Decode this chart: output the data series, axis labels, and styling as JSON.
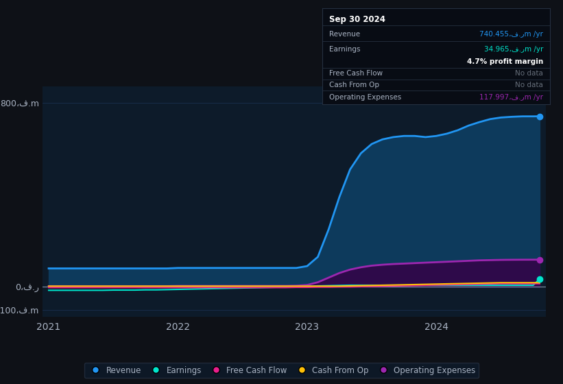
{
  "background_color": "#0e1117",
  "plot_bg_color": "#0d1b2a",
  "grid_color": "#1a3050",
  "text_color": "#aab4c4",
  "title_color": "#ffffff",
  "ylabel_800": "800،ف.m",
  "ylabel_0": "0،ف.ر",
  "ylabel_neg100": "-100،ف.m",
  "xtick_labels": [
    "2021",
    "2022",
    "2023",
    "2024"
  ],
  "xtick_positions": [
    0.0,
    1.0,
    2.0,
    3.0
  ],
  "x_values": [
    0.0,
    0.083,
    0.167,
    0.25,
    0.333,
    0.417,
    0.5,
    0.583,
    0.667,
    0.75,
    0.833,
    0.917,
    1.0,
    1.083,
    1.167,
    1.25,
    1.333,
    1.417,
    1.5,
    1.583,
    1.667,
    1.75,
    1.833,
    1.917,
    2.0,
    2.083,
    2.167,
    2.25,
    2.333,
    2.417,
    2.5,
    2.583,
    2.667,
    2.75,
    2.833,
    2.917,
    3.0,
    3.083,
    3.167,
    3.25,
    3.333,
    3.417,
    3.5,
    3.583,
    3.667,
    3.75,
    3.8
  ],
  "revenue": [
    80,
    80,
    80,
    80,
    80,
    80,
    80,
    80,
    80,
    80,
    80,
    80,
    82,
    82,
    82,
    82,
    82,
    82,
    82,
    82,
    82,
    82,
    82,
    82,
    90,
    130,
    250,
    390,
    510,
    580,
    620,
    640,
    650,
    655,
    655,
    650,
    655,
    665,
    680,
    700,
    715,
    728,
    735,
    738,
    740,
    740,
    740.455
  ],
  "earnings": [
    -15,
    -15,
    -15,
    -15,
    -15,
    -15,
    -14,
    -14,
    -14,
    -13,
    -13,
    -12,
    -11,
    -10,
    -9,
    -8,
    -7,
    -6,
    -5,
    -4,
    -3,
    -2,
    -1,
    0,
    2,
    4,
    5,
    6,
    7,
    7,
    7,
    7,
    7,
    7,
    7,
    7,
    7,
    7,
    7,
    7,
    7,
    7,
    7,
    7,
    7,
    7,
    34.965
  ],
  "free_cash_flow": [
    -3,
    -3,
    -3,
    -3,
    -3,
    -3,
    -3,
    -3,
    -3,
    -3,
    -3,
    -3,
    -3,
    -3,
    -3,
    -3,
    -3,
    -3,
    -3,
    -3,
    -3,
    -3,
    -3,
    -2,
    -2,
    -1,
    -1,
    0,
    0,
    1,
    2,
    3,
    4,
    5,
    6,
    7,
    8,
    9,
    10,
    11,
    12,
    13,
    14,
    14,
    14,
    14,
    14
  ],
  "cash_from_op": [
    3,
    3,
    3,
    3,
    3,
    3,
    3,
    3,
    3,
    3,
    3,
    3,
    3,
    3,
    3,
    3,
    3,
    3,
    3,
    3,
    3,
    3,
    3,
    3,
    3,
    3,
    3,
    3,
    4,
    5,
    6,
    7,
    8,
    9,
    10,
    11,
    12,
    13,
    14,
    15,
    16,
    17,
    18,
    18,
    18,
    18,
    18
  ],
  "operating_expenses": [
    3,
    3,
    3,
    3,
    3,
    3,
    3,
    3,
    3,
    3,
    3,
    3,
    4,
    4,
    4,
    4,
    4,
    4,
    4,
    4,
    4,
    4,
    4,
    5,
    8,
    20,
    40,
    60,
    75,
    85,
    92,
    96,
    99,
    101,
    103,
    105,
    107,
    109,
    111,
    113,
    115,
    116,
    117,
    117.5,
    117.8,
    117.9,
    117.997
  ],
  "revenue_color": "#2196f3",
  "earnings_color": "#00e5cc",
  "free_cash_flow_color": "#e91e8c",
  "cash_from_op_color": "#ffc107",
  "operating_expenses_color": "#9c27b0",
  "revenue_fill": "#0d3a5c",
  "earnings_fill": "#003d35",
  "operating_expenses_fill": "#2e0a4a",
  "ylim": [
    -130,
    870
  ],
  "xlim": [
    -0.05,
    3.85
  ],
  "yticks": [
    -100,
    0,
    800
  ],
  "tooltip_bg": "#080c14",
  "tooltip_border": "#253040",
  "tooltip_title": "Sep 30 2024",
  "tooltip_revenue_label": "Revenue",
  "tooltip_revenue_val": "740.455،ف.رm /yr",
  "tooltip_earnings_label": "Earnings",
  "tooltip_earnings_val": "34.965،ف.رm /yr",
  "tooltip_margin_label": "4.7% profit margin",
  "tooltip_fcf_label": "Free Cash Flow",
  "tooltip_fcf_val": "No data",
  "tooltip_cfo_label": "Cash From Op",
  "tooltip_cfo_val": "No data",
  "tooltip_opex_label": "Operating Expenses",
  "tooltip_opex_val": "117.997،ف.رm /yr",
  "legend_items": [
    "Revenue",
    "Earnings",
    "Free Cash Flow",
    "Cash From Op",
    "Operating Expenses"
  ],
  "legend_colors": [
    "#2196f3",
    "#00e5cc",
    "#e91e8c",
    "#ffc107",
    "#9c27b0"
  ]
}
